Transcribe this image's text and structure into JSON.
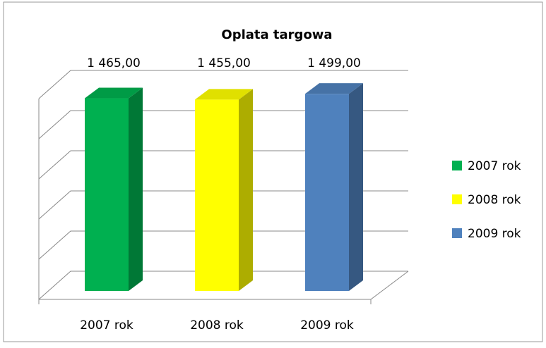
{
  "chart_data": {
    "type": "bar3d",
    "title": "Oplata targowa",
    "categories": [
      "2007 rok",
      "2008 rok",
      "2009 rok"
    ],
    "values": [
      1465,
      1455,
      1499
    ],
    "value_labels": [
      "1 465,00",
      "1 455,00",
      "1 499,00"
    ],
    "colors": [
      "#00b050",
      "#ffff00",
      "#4f81bd"
    ],
    "ylim": [
      0,
      1500
    ],
    "yticks": [
      0,
      300,
      600,
      900,
      1200,
      1500
    ],
    "show_tick_labels": false,
    "grid": true,
    "legend": "right"
  }
}
